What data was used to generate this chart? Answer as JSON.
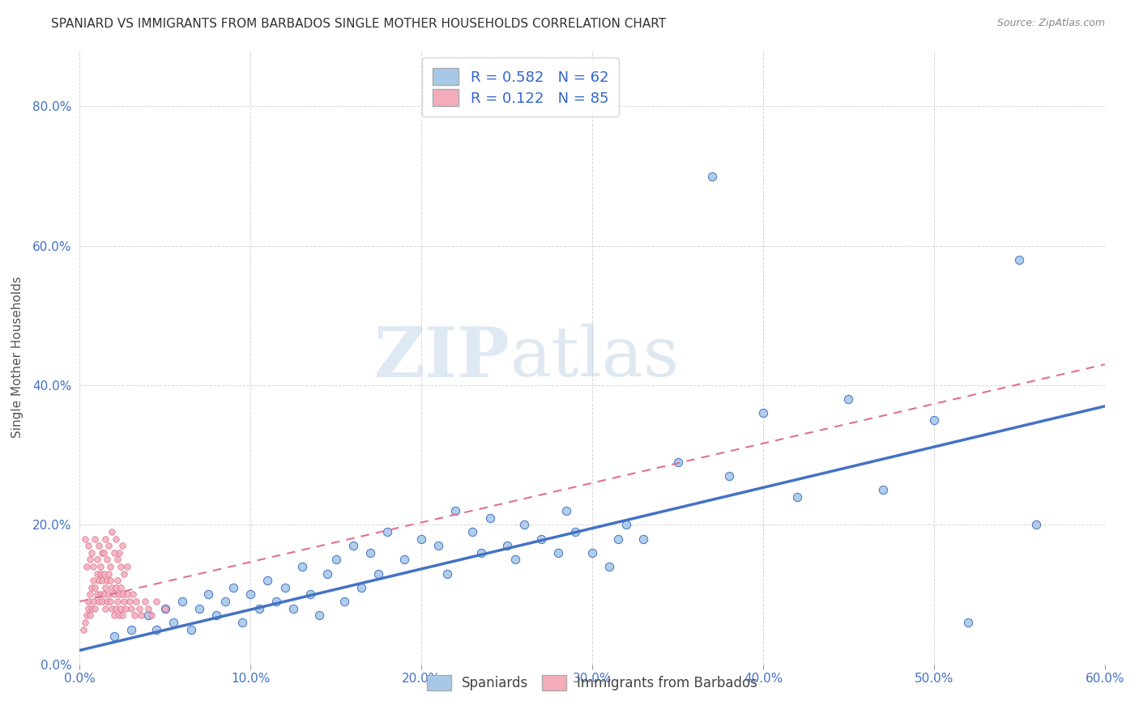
{
  "title": "SPANIARD VS IMMIGRANTS FROM BARBADOS SINGLE MOTHER HOUSEHOLDS CORRELATION CHART",
  "source": "Source: ZipAtlas.com",
  "ylabel": "Single Mother Households",
  "xlim": [
    0.0,
    0.6
  ],
  "ylim": [
    0.0,
    0.88
  ],
  "xticks": [
    0.0,
    0.1,
    0.2,
    0.3,
    0.4,
    0.5,
    0.6
  ],
  "yticks": [
    0.0,
    0.2,
    0.4,
    0.6,
    0.8
  ],
  "legend_label1": "Spaniards",
  "legend_label2": "Immigrants from Barbados",
  "R1": 0.582,
  "N1": 62,
  "R2": 0.122,
  "N2": 85,
  "color_blue": "#A8C8E8",
  "color_blue_line": "#4472C4",
  "color_pink": "#F4ACBA",
  "color_pink_line": "#E07090",
  "watermark_zip": "ZIP",
  "watermark_atlas": "atlas",
  "trend1_x0": 0.0,
  "trend1_y0": 0.02,
  "trend1_x1": 0.6,
  "trend1_y1": 0.37,
  "trend2_x0": 0.0,
  "trend2_y0": 0.09,
  "trend2_x1": 0.6,
  "trend2_y1": 0.43,
  "spaniards_x": [
    0.02,
    0.03,
    0.04,
    0.045,
    0.05,
    0.055,
    0.06,
    0.065,
    0.07,
    0.075,
    0.08,
    0.085,
    0.09,
    0.095,
    0.1,
    0.105,
    0.11,
    0.115,
    0.12,
    0.125,
    0.13,
    0.135,
    0.14,
    0.145,
    0.15,
    0.155,
    0.16,
    0.165,
    0.17,
    0.175,
    0.18,
    0.19,
    0.2,
    0.21,
    0.215,
    0.22,
    0.23,
    0.235,
    0.24,
    0.25,
    0.255,
    0.26,
    0.27,
    0.28,
    0.285,
    0.29,
    0.3,
    0.31,
    0.315,
    0.32,
    0.33,
    0.35,
    0.38,
    0.4,
    0.42,
    0.5,
    0.55,
    0.37,
    0.56,
    0.45,
    0.47,
    0.52
  ],
  "spaniards_y": [
    0.04,
    0.05,
    0.07,
    0.05,
    0.08,
    0.06,
    0.09,
    0.05,
    0.08,
    0.1,
    0.07,
    0.09,
    0.11,
    0.06,
    0.1,
    0.08,
    0.12,
    0.09,
    0.11,
    0.08,
    0.14,
    0.1,
    0.07,
    0.13,
    0.15,
    0.09,
    0.17,
    0.11,
    0.16,
    0.13,
    0.19,
    0.15,
    0.18,
    0.17,
    0.13,
    0.22,
    0.19,
    0.16,
    0.21,
    0.17,
    0.15,
    0.2,
    0.18,
    0.16,
    0.22,
    0.19,
    0.16,
    0.14,
    0.18,
    0.2,
    0.18,
    0.29,
    0.27,
    0.36,
    0.24,
    0.35,
    0.58,
    0.7,
    0.2,
    0.38,
    0.25,
    0.06
  ],
  "barbados_x": [
    0.002,
    0.003,
    0.004,
    0.005,
    0.005,
    0.006,
    0.006,
    0.007,
    0.007,
    0.008,
    0.008,
    0.009,
    0.009,
    0.01,
    0.01,
    0.011,
    0.011,
    0.012,
    0.012,
    0.013,
    0.013,
    0.014,
    0.014,
    0.015,
    0.015,
    0.016,
    0.016,
    0.017,
    0.017,
    0.018,
    0.018,
    0.019,
    0.019,
    0.02,
    0.02,
    0.021,
    0.021,
    0.022,
    0.022,
    0.023,
    0.023,
    0.024,
    0.024,
    0.025,
    0.025,
    0.026,
    0.027,
    0.028,
    0.029,
    0.03,
    0.031,
    0.032,
    0.033,
    0.035,
    0.036,
    0.038,
    0.04,
    0.042,
    0.045,
    0.05,
    0.003,
    0.005,
    0.007,
    0.009,
    0.011,
    0.013,
    0.015,
    0.017,
    0.019,
    0.021,
    0.023,
    0.025,
    0.004,
    0.006,
    0.008,
    0.01,
    0.012,
    0.014,
    0.016,
    0.018,
    0.02,
    0.022,
    0.024,
    0.026,
    0.028
  ],
  "barbados_y": [
    0.05,
    0.06,
    0.07,
    0.08,
    0.09,
    0.07,
    0.1,
    0.08,
    0.11,
    0.09,
    0.12,
    0.08,
    0.11,
    0.1,
    0.13,
    0.09,
    0.12,
    0.1,
    0.13,
    0.09,
    0.12,
    0.1,
    0.13,
    0.08,
    0.11,
    0.09,
    0.12,
    0.1,
    0.13,
    0.09,
    0.12,
    0.08,
    0.11,
    0.07,
    0.1,
    0.08,
    0.11,
    0.09,
    0.12,
    0.07,
    0.1,
    0.08,
    0.11,
    0.07,
    0.1,
    0.09,
    0.08,
    0.1,
    0.09,
    0.08,
    0.1,
    0.07,
    0.09,
    0.08,
    0.07,
    0.09,
    0.08,
    0.07,
    0.09,
    0.08,
    0.18,
    0.17,
    0.16,
    0.18,
    0.17,
    0.16,
    0.18,
    0.17,
    0.19,
    0.18,
    0.16,
    0.17,
    0.14,
    0.15,
    0.14,
    0.15,
    0.14,
    0.16,
    0.15,
    0.14,
    0.16,
    0.15,
    0.14,
    0.13,
    0.14
  ]
}
